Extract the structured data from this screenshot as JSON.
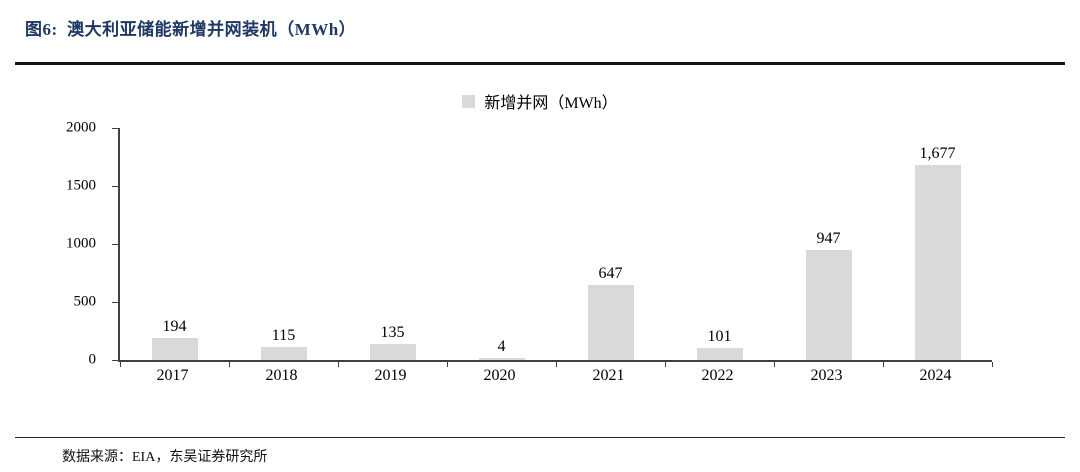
{
  "header": {
    "title": "图6:  澳大利亚储能新增并网装机（MWh）"
  },
  "footer": {
    "source": "数据来源：EIA，东吴证券研究所"
  },
  "colors": {
    "title": "#1F3864",
    "bar": "#D9D9D9",
    "axis": "#404040"
  },
  "chart_data": {
    "type": "bar",
    "title": "澳大利亚储能新增并网装机（MWh）",
    "legend": "新增并网（MWh）",
    "legend_position": "top-center",
    "categories": [
      "2017",
      "2018",
      "2019",
      "2020",
      "2021",
      "2022",
      "2023",
      "2024"
    ],
    "values": [
      194,
      115,
      135,
      4,
      647,
      101,
      947,
      1677
    ],
    "value_labels": [
      "194",
      "115",
      "135",
      "4",
      "647",
      "101",
      "947",
      "1,677"
    ],
    "xlabel": "",
    "ylabel": "",
    "ylim": [
      0,
      2000
    ],
    "yticks": [
      0,
      500,
      1000,
      1500,
      2000
    ],
    "grid": false,
    "bar_color": "#D9D9D9"
  }
}
